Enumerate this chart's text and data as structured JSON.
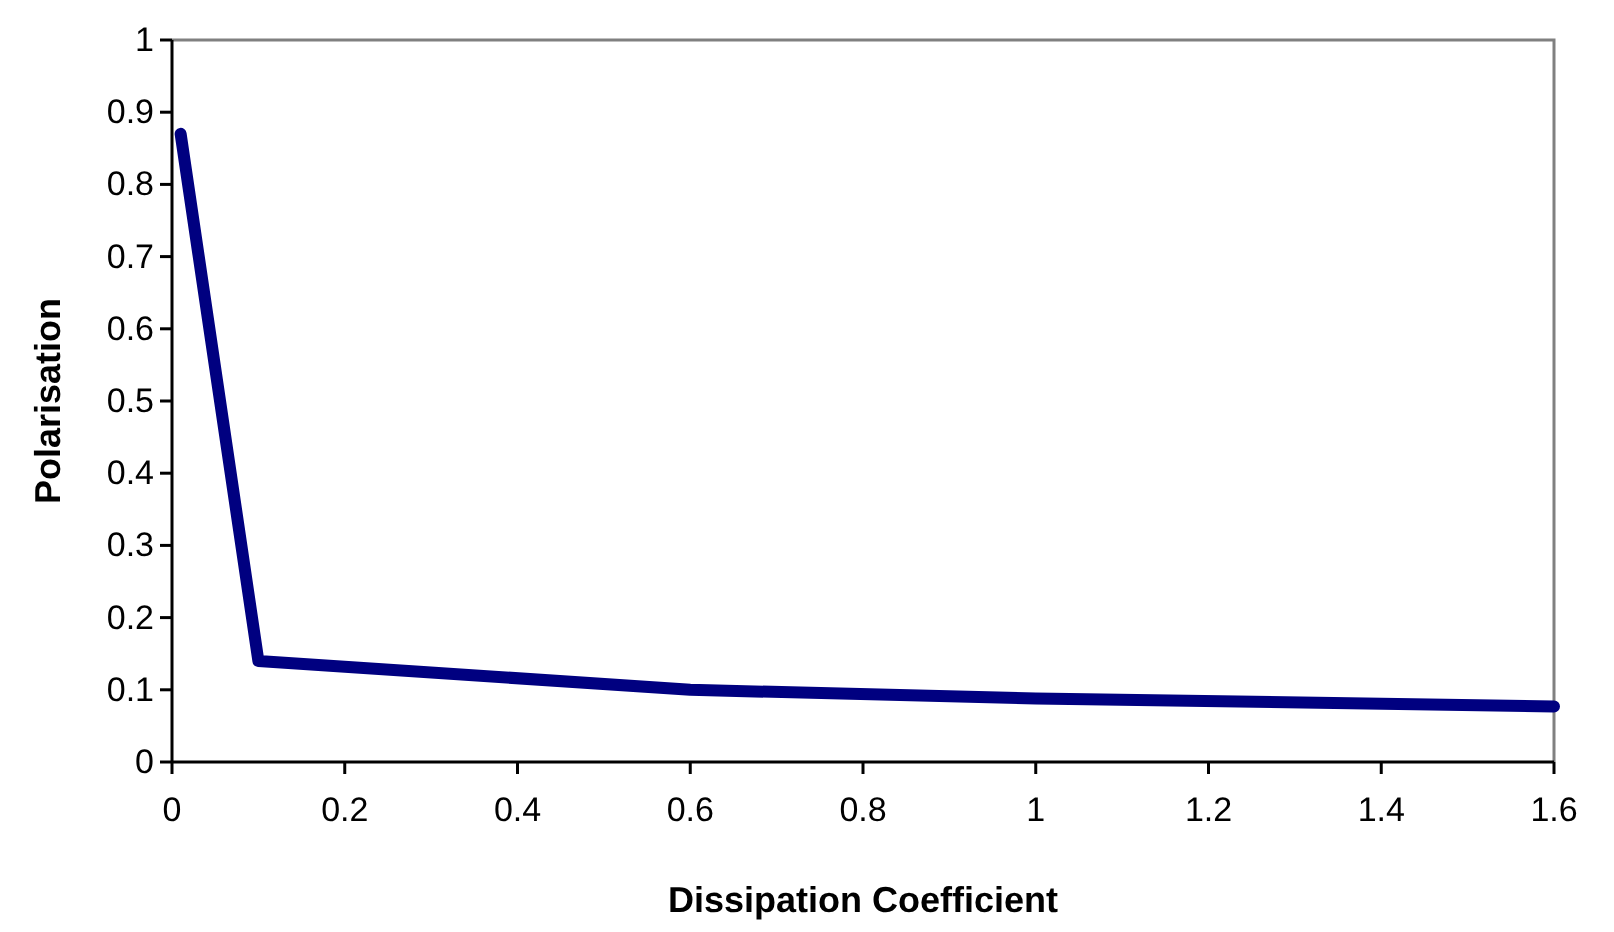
{
  "chart_data": {
    "type": "line",
    "xlabel": "Dissipation Coefficient",
    "ylabel": "Polarisation",
    "x": [
      0.01,
      0.1,
      0.6,
      1,
      1.6
    ],
    "series": [
      {
        "color": "#000080",
        "values": [
          0.87,
          0.14,
          0.1,
          0.088,
          0.077
        ]
      }
    ],
    "xlim": [
      0,
      1.6
    ],
    "xticks": [
      0,
      0.2,
      0.4,
      0.6,
      0.8,
      1,
      1.2,
      1.4,
      1.6
    ],
    "ylim": [
      0,
      1
    ],
    "yticks": [
      0,
      0.1,
      0.2,
      0.3,
      0.4,
      0.5,
      0.6,
      0.7,
      0.8,
      0.9,
      1
    ],
    "grid": false,
    "marker": "none",
    "line_style": "solid"
  }
}
